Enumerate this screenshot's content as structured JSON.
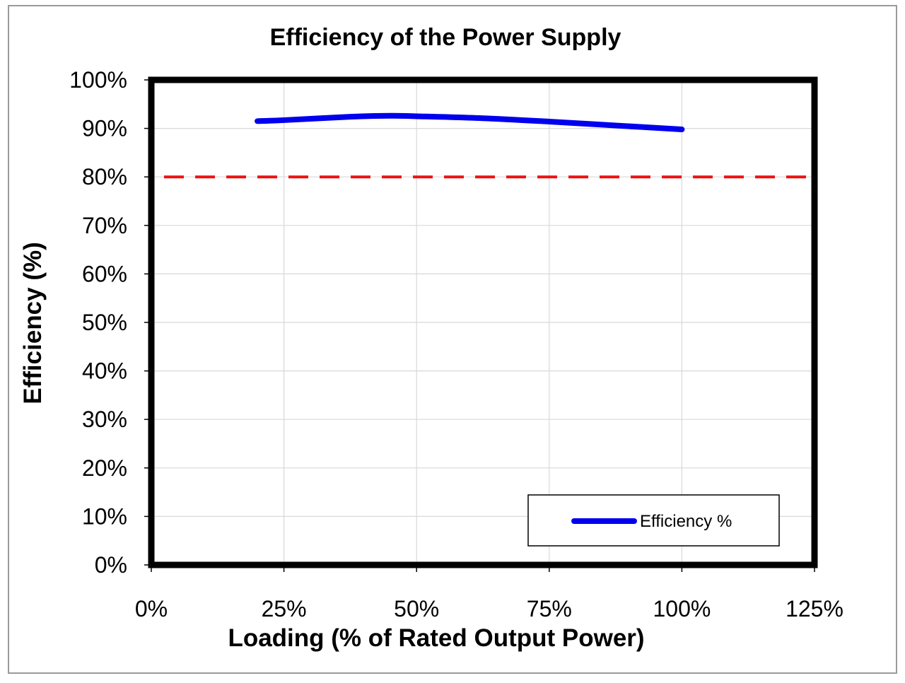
{
  "chart_data": {
    "type": "line",
    "title": "Efficiency of the Power Supply",
    "xlabel": "Loading (% of Rated Output Power)",
    "ylabel": "Efficiency (%)",
    "xlim": [
      0,
      125
    ],
    "ylim": [
      0,
      100
    ],
    "x_ticks": [
      0,
      25,
      50,
      75,
      100,
      125
    ],
    "x_tick_labels": [
      "0%",
      "25%",
      "50%",
      "75%",
      "100%",
      "125%"
    ],
    "y_ticks": [
      0,
      10,
      20,
      30,
      40,
      50,
      60,
      70,
      80,
      90,
      100
    ],
    "y_tick_labels": [
      "0%",
      "10%",
      "20%",
      "30%",
      "40%",
      "50%",
      "60%",
      "70%",
      "80%",
      "90%",
      "100%"
    ],
    "grid": true,
    "legend_position": "bottom-right",
    "series": [
      {
        "name": "Efficiency %",
        "color": "#0000ee",
        "style": "solid",
        "x": [
          20,
          25,
          37.5,
          45,
          50,
          62.5,
          75,
          87.5,
          100
        ],
        "y": [
          91.5,
          91.7,
          92.4,
          92.6,
          92.5,
          92.1,
          91.4,
          90.6,
          89.8
        ]
      }
    ],
    "reference_line": {
      "y": 80,
      "color": "#ee1111",
      "style": "dashed"
    }
  }
}
